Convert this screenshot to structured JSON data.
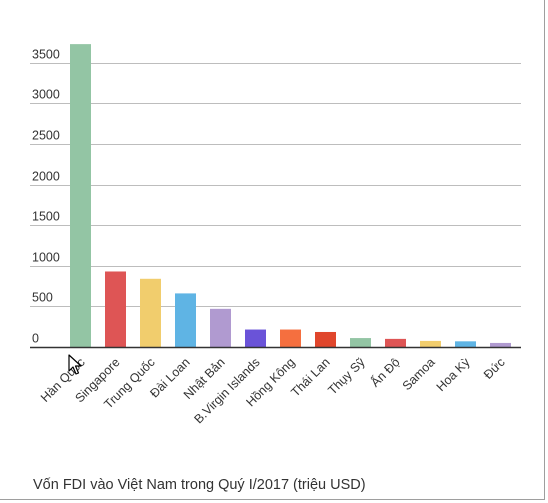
{
  "caption": "Vốn FDI vào Việt Nam trong Quý I/2017 (triệu USD)",
  "colors": {
    "grid": "#bdbdbd",
    "axis": "#333333",
    "text": "#333333"
  },
  "chart_data": {
    "type": "bar",
    "title": "Vốn FDI vào Việt Nam trong Quý I/2017 (triệu USD)",
    "xlabel": "",
    "ylabel": "",
    "ylim": [
      0,
      3500
    ],
    "yticks": [
      0,
      500,
      1000,
      1500,
      2000,
      2500,
      3000,
      3500
    ],
    "grid": true,
    "legend": "none",
    "categories": [
      "Hàn Quốc",
      "Singapore",
      "Trung Quốc",
      "Đài Loan",
      "Nhật Bản",
      "B.Virgin Islands",
      "Hồng Kông",
      "Thái Lan",
      "Thụy Sỹ",
      "Ấn Độ",
      "Samoa",
      "Hoa Kỳ",
      "Đức"
    ],
    "values": [
      3730,
      930,
      840,
      660,
      470,
      215,
      215,
      185,
      110,
      100,
      75,
      70,
      50
    ],
    "colors": [
      "#93c5a4",
      "#de5555",
      "#f1cd6d",
      "#5fb4e4",
      "#b09ad0",
      "#6a53d8",
      "#f56f3f",
      "#e0462c",
      "#93c5a4",
      "#de5555",
      "#f1cd6d",
      "#5fb4e4",
      "#b09ad0"
    ]
  }
}
